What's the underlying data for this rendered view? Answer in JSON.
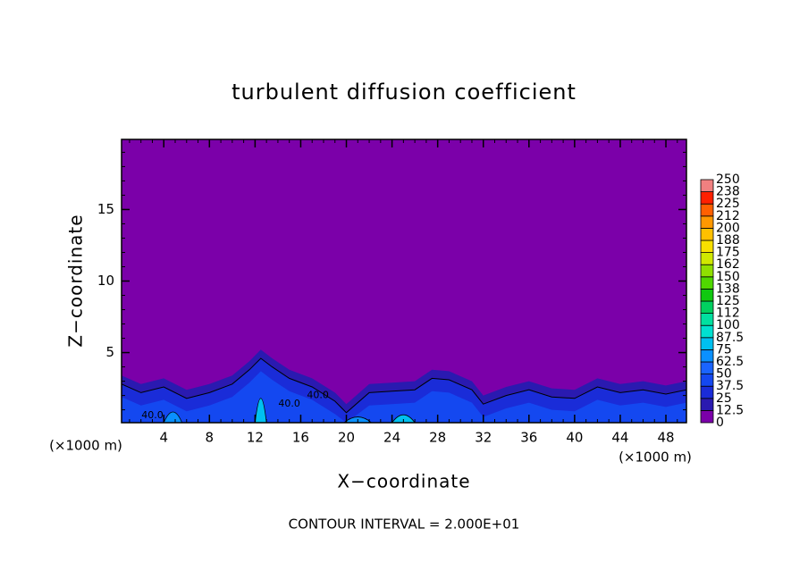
{
  "chart_data": {
    "type": "contour",
    "title": "turbulent diffusion coefficient",
    "x_label": "X−coordinate",
    "y_label": "Z−coordinate",
    "x_unit_left": "(×1000 m)",
    "x_unit_right": "(×1000 m)",
    "footer": "CONTOUR INTERVAL = 2.000E+01",
    "contour_labels": [
      "40.0",
      "40.0",
      "40.0"
    ],
    "xlim": [
      0.3,
      49.8
    ],
    "xticks": [
      4,
      8,
      12,
      16,
      20,
      24,
      28,
      32,
      36,
      40,
      44,
      48
    ],
    "ylim": [
      0.1,
      19.9
    ],
    "yticks": [
      5,
      10,
      15
    ],
    "colorbar": {
      "levels": [
        0,
        12.5,
        25,
        37.5,
        50,
        62.5,
        75,
        87.5,
        100,
        112,
        125,
        138,
        150,
        162,
        175,
        188,
        200,
        212,
        225,
        238,
        250
      ],
      "colors": [
        "#7b00a9",
        "#2a1ab0",
        "#1a2cd8",
        "#1448f0",
        "#1a64ff",
        "#0a90ff",
        "#00c0f0",
        "#00e0d0",
        "#00e0a0",
        "#00d060",
        "#10c810",
        "#50d800",
        "#90e000",
        "#d0e800",
        "#f8e000",
        "#ffc000",
        "#ff9800",
        "#ff6000",
        "#ff2000",
        "#f08080"
      ]
    }
  }
}
